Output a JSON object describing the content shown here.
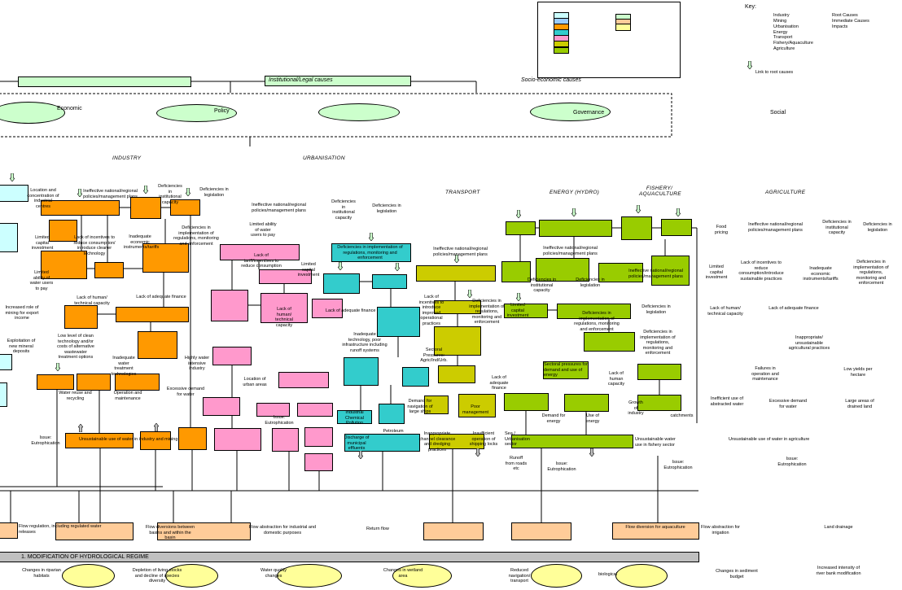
{
  "key": {
    "title": "Key:",
    "sector_colors": {
      "Industry": "#ccffff",
      "Mining": "#99ccff",
      "Urbanisation": "#ff9900",
      "Energy": "#33cccc",
      "Transport": "#ff99cc",
      "Fishery/Aquaculture": "#cccc00",
      "Agriculture": "#99cc00"
    },
    "cause_colors": {
      "Root Causes": "#ccffcc",
      "Immediate Causes": "#ffcc99",
      "Impacts": "#ffff99"
    },
    "sectors": [
      "Industry",
      "Mining",
      "Urbanisation",
      "Energy",
      "Transport",
      "Fishery/Aquaculture",
      "Agriculture"
    ],
    "causes": [
      "Root Causes",
      "Immediate Causes",
      "Impacts"
    ],
    "link_label": "Link to root causes"
  },
  "top": {
    "socio_economic": "Socio-economic causes",
    "institutional": "Institutional/Legal causes",
    "economic": "Economic",
    "policy": "Policy",
    "governance": "Governance",
    "social": "Social"
  },
  "sectors": {
    "industry": "INDUSTRY",
    "urbanisation": "URBANISATION",
    "transport": "TRANSPORT",
    "energy": "ENERGY (HYDRO)",
    "fishery": "FISHERY/ AQUACULTURE",
    "agriculture": "AGRICULTURE"
  },
  "labels": {
    "i1": "Location and concentration of industrial centres",
    "i2": "Ineffective national/regional policies/management plans",
    "i3": "Deficiencies in institutional capacity",
    "i4": "Deficiencies in legislation",
    "i5": "Lack of incentives to reduce consumption/ introduce cleaner technology",
    "i6": "Limited capital investment",
    "i7": "Inadequate economic instruments/tariffs",
    "i8": "Deficiencies in implementation of regulations, monitoring and enforcement",
    "i9": "Limited ability of water users to pay",
    "i10": "Lack of human/ technical capacity",
    "i11": "Lack of adequate finance",
    "i12": "Increased role of mining for export income",
    "i13": "Exploitation of new mineral deposits",
    "i14": "Low level of clean technology and/or costs of alternative wastewater treatment options",
    "i15": "Inadequate water treatment technologies",
    "i16": "Highly water intensive industry",
    "i17": "Water reuse and recycling",
    "i18": "Operation and maintenance",
    "i19": "Excessive demand for water",
    "i20": "Unsustainable use of water in industry and mining",
    "i21": "Issue: Eutrophication",
    "u1": "Ineffective national/regional policies/management plans",
    "u2": "Deficiencies in institutional capacity",
    "u3": "Deficiencies in legislation",
    "u4": "Limited ability of water users to pay",
    "u5": "Lack of tariff/incentives to reduce consumption",
    "u6": "Limited capital investment",
    "u7": "Lack of human/ technical capacity",
    "u8": "Lack of adequate finance",
    "u9": "Deficiencies in implementation of regulations, monitoring and enforcement",
    "u10": "Inadequate technology, poor infrastructure including runoff systems",
    "u11": "Location of urban areas",
    "u12": "Issue: Eutrophication",
    "u13": "Industrial Chemical Pollution",
    "u14": "Discharge of municipal effluents",
    "u15": "Petroleum",
    "t1": "Ineffective national/regional policies/management plans",
    "t2": "Lack of incentives to introduce improved operational practices",
    "t3": "Deficiencies in implementation of regulations, monitoring and enforcement",
    "t4": "Sectoral Pressures: Agric/Ind/Urb.",
    "t5": "Demand for navigation of large ships",
    "t6": "Poor management",
    "t7": "Inappropriate channel clearance and dredging practices",
    "t8": "Insufficient operation of shipping locks",
    "e1": "Ineffective national/regional policies/management plans",
    "e2": "Deficiencies in institutional capacity",
    "e3": "Deficiencies in legislation",
    "e4": "Limited capital investment",
    "e5": "Deficiencies in implementation of regulations, monitoring and enforcement",
    "e6": "Sectoral pressures for demand and use of energy",
    "e7": "Lack of adequate finance",
    "e8": "Lack of human capacity",
    "e9": "Demand for energy",
    "e10": "Use of energy",
    "e11": "Sea / Urbanisation sector",
    "e12": "Runoff from roads etc",
    "e13": "Issue: Eutrophication",
    "f1": "Ineffective national/regional policies/management plans",
    "f2": "Deficiencies in legislation",
    "f3": "Deficiencies in implementation of regulations, monitoring and enforcement",
    "f4": "Growth of industry",
    "f5": "catchments",
    "f6": "Unsustainable water use in fishery sector",
    "f7": "Issue: Eutrophication",
    "a1": "Food pricing",
    "a2": "Ineffective national/regional policies/management plans",
    "a3": "Deficiencies in institutional capacity",
    "a4": "Deficiencies in legislation",
    "a5": "Limited capital investment",
    "a6": "Lack of incentives to reduce consumption/introduce sustainable practices",
    "a7": "Inadequate economic instruments/tariffs",
    "a8": "Deficiencies in implementation of regulations, monitoring and enforcement",
    "a9": "Lack of human/ technical capacity",
    "a10": "Lack of adequate finance",
    "a11": "Inappropriate/ unsustainable agricultural practices",
    "a12": "Failures in operation and maintenance",
    "a13": "Low yields per hectare",
    "a14": "Inefficient use of abstracted water",
    "a15": "Excessive demand for water",
    "a16": "Large areas of drained land",
    "a17": "Unsustainable use of water in agriculture",
    "a18": "Issue: Eutrophication"
  },
  "immediate": {
    "c1": "Flow regulation, including regulated water releases",
    "c2": "Flow diversions between basins and within the basin",
    "c3": "Flow abstraction for industrial and domestic purposes",
    "c4": "Return flow",
    "c5": "Flow diversion for aquaculture",
    "c6": "Flow abstraction for irrigation",
    "c7": "Land drainage"
  },
  "issue_bar": "1. MODIFICATION OF HYDROLOGICAL REGIME",
  "impacts": {
    "m1": "Changes in riparian habitats",
    "m2": "Depletion of living stocks and decline of species diversity",
    "m3": "Water quality changes",
    "m4": "Changes in wetland area",
    "m5": "Reduced navigation/ transport",
    "m6": "biological",
    "m7": "Changes in sediment budget",
    "m8": "Increased intensity of river bank modification"
  }
}
